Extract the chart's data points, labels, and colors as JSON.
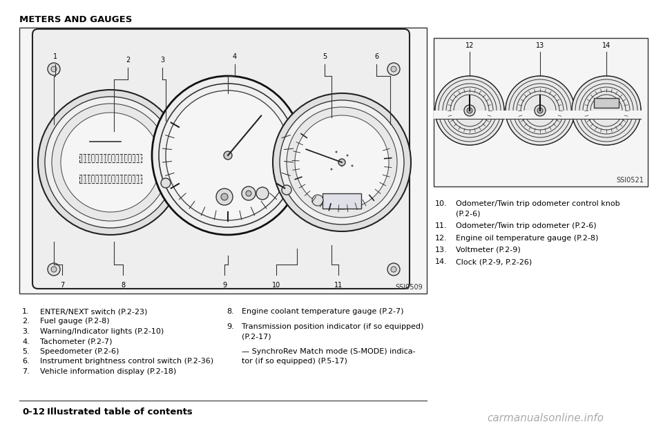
{
  "title": "METERS AND GAUGES",
  "bg_color": "#ffffff",
  "page_label": "0-12",
  "page_label_bold": "Illustrated table of contents",
  "left_image_label": "SSI0509",
  "right_image_label": "SSI0521",
  "left_items": [
    [
      "1.",
      "ENTER/NEXT switch (P.2-23)"
    ],
    [
      "2.",
      "Fuel gauge (P.2-8)"
    ],
    [
      "3.",
      "Warning/Indicator lights (P.2-10)"
    ],
    [
      "4.",
      "Tachometer (P.2-7)"
    ],
    [
      "5.",
      "Speedometer (P.2-6)"
    ],
    [
      "6.",
      "Instrument brightness control switch (P.2-36)"
    ],
    [
      "7.",
      "Vehicle information display (P.2-18)"
    ]
  ],
  "right_items": [
    [
      "8.",
      "Engine coolant temperature gauge (P.2-7)"
    ],
    [
      "9.",
      "Transmission position indicator (if so equipped)\n(P.2-17)",
      "— SynchroRev Match mode (S-MODE) indica-\ntor (if so equipped) (P.5-17)"
    ]
  ],
  "side_items": [
    [
      "10.",
      "Odometer/Twin trip odometer control knob\n(P.2-6)"
    ],
    [
      "11.",
      "Odometer/Twin trip odometer (P.2-6)"
    ],
    [
      "12.",
      "Engine oil temperature gauge (P.2-8)"
    ],
    [
      "13.",
      "Voltmeter (P.2-9)"
    ],
    [
      "14.",
      "Clock (P.2-9, P.2-26)"
    ]
  ],
  "watermark": "carmanualsonline.info",
  "lc": "#000000",
  "fc": "#ffffff",
  "panel_fc": "#f5f5f5"
}
